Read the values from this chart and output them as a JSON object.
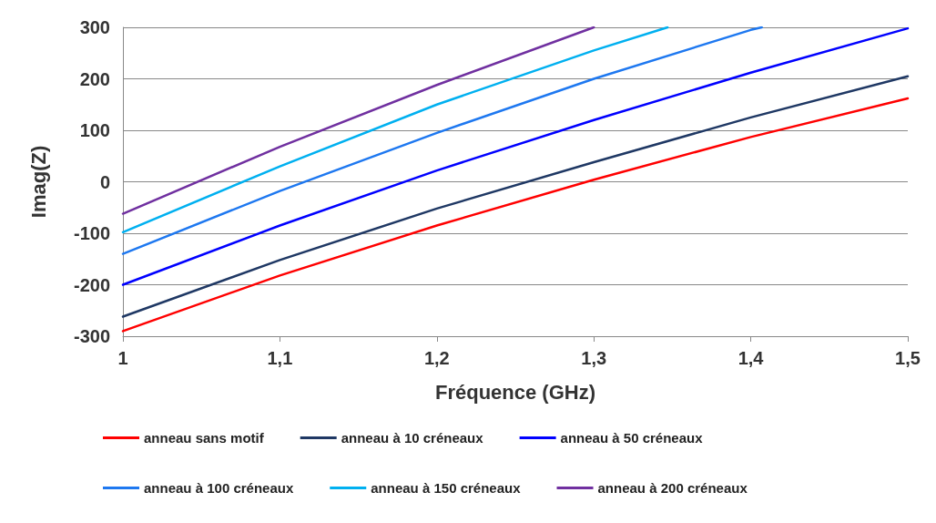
{
  "chart_data": {
    "type": "line",
    "xlabel": "Fréquence (GHz)",
    "ylabel": "Imag(Z)",
    "xlim": [
      1,
      1.5
    ],
    "ylim": [
      -300,
      300
    ],
    "xticks": [
      1,
      {
        "value": 1.1,
        "label": "1,1"
      },
      {
        "value": 1.2,
        "label": "1,2"
      },
      {
        "value": 1.3,
        "label": "1,3"
      },
      {
        "value": 1.4,
        "label": "1,4"
      },
      {
        "value": 1.5,
        "label": "1,5"
      }
    ],
    "yticks": [
      -300,
      -200,
      -100,
      0,
      100,
      200,
      300
    ],
    "grid": "y",
    "legend": "bottom",
    "marker": "none",
    "line_style": "solid",
    "series": [
      {
        "name": "anneau sans motif",
        "color": "#ff0000",
        "x": [
          1,
          1.1,
          1.2,
          1.3,
          1.4,
          1.5
        ],
        "values": [
          -290,
          -182,
          -85,
          4,
          87,
          162
        ]
      },
      {
        "name": "anneau à 10 créneaux",
        "color": "#1f3864",
        "x": [
          1,
          1.1,
          1.2,
          1.3,
          1.4,
          1.5
        ],
        "values": [
          -262,
          -152,
          -52,
          38,
          125,
          205
        ]
      },
      {
        "name": "anneau à 50 créneaux",
        "color": "#0000ff",
        "x": [
          1,
          1.1,
          1.2,
          1.3,
          1.4,
          1.5
        ],
        "values": [
          -200,
          -85,
          22,
          120,
          212,
          298
        ]
      },
      {
        "name": "anneau à 100 créneaux",
        "color": "#1e78f0",
        "x": [
          1,
          1.1,
          1.2,
          1.3,
          1.4,
          1.407
        ],
        "values": [
          -140,
          -18,
          95,
          200,
          295,
          300
        ]
      },
      {
        "name": "anneau à 150 créneaux",
        "color": "#00b0f0",
        "x": [
          1,
          1.1,
          1.2,
          1.3,
          1.347
        ],
        "values": [
          -98,
          30,
          150,
          255,
          300
        ]
      },
      {
        "name": "anneau à 200 créneaux",
        "color": "#7030a0",
        "x": [
          1,
          1.1,
          1.2,
          1.3
        ],
        "values": [
          -62,
          68,
          188,
          300
        ]
      }
    ]
  }
}
